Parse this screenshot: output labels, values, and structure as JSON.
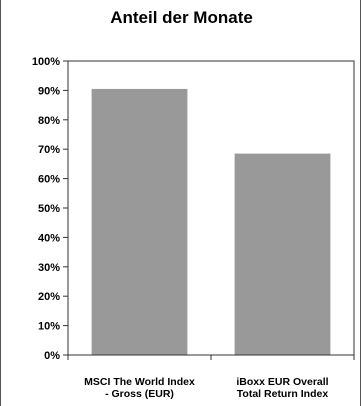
{
  "chart_data": {
    "type": "bar",
    "title": "Anteil der Monate",
    "xlabel": "",
    "ylabel": "",
    "categories": [
      [
        "MSCI The World Index",
        "- Gross (EUR)"
      ],
      [
        "iBoxx EUR Overall",
        "Total Return Index"
      ]
    ],
    "values": [
      0.905,
      0.685
    ],
    "ylim": [
      0,
      1
    ],
    "yticks": [
      "0%",
      "10%",
      "20%",
      "30%",
      "40%",
      "50%",
      "60%",
      "70%",
      "80%",
      "90%",
      "100%"
    ],
    "grid": false,
    "legend": "none",
    "colors": {
      "bar": "#999999",
      "plot_border": "#333333",
      "axis": "#333333"
    }
  }
}
